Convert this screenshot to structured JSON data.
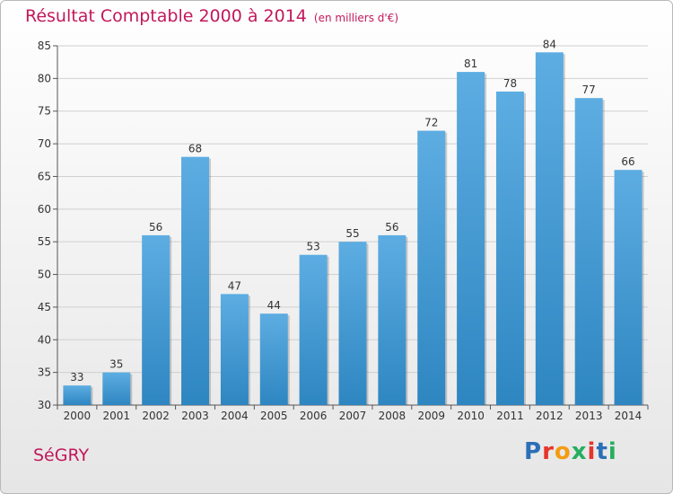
{
  "title": "Résultat Comptable 2000 à 2014",
  "unit": "(en milliers d'€)",
  "town": "SéGRY",
  "logo": {
    "letters": [
      {
        "ch": "P",
        "color": "#2a6fb7"
      },
      {
        "ch": "r",
        "color": "#e6352b"
      },
      {
        "ch": "o",
        "color": "#f39c12"
      },
      {
        "ch": "x",
        "color": "#27ae60"
      },
      {
        "ch": "i",
        "color": "#e6352b"
      },
      {
        "ch": "t",
        "color": "#2a6fb7"
      },
      {
        "ch": "i",
        "color": "#27ae60"
      }
    ]
  },
  "chart_data": {
    "type": "bar",
    "categories": [
      "2000",
      "2001",
      "2002",
      "2003",
      "2004",
      "2005",
      "2006",
      "2007",
      "2008",
      "2009",
      "2010",
      "2011",
      "2012",
      "2013",
      "2014"
    ],
    "values": [
      33,
      35,
      56,
      68,
      47,
      44,
      53,
      55,
      56,
      72,
      81,
      78,
      84,
      77,
      66
    ],
    "ylim": [
      30,
      85
    ],
    "yticks": [
      30,
      35,
      40,
      45,
      50,
      55,
      60,
      65,
      70,
      75,
      80,
      85
    ],
    "grid": true,
    "bar_color_light": "#5dade2",
    "bar_color_dark": "#2e86c1",
    "show_data_labels": true
  }
}
